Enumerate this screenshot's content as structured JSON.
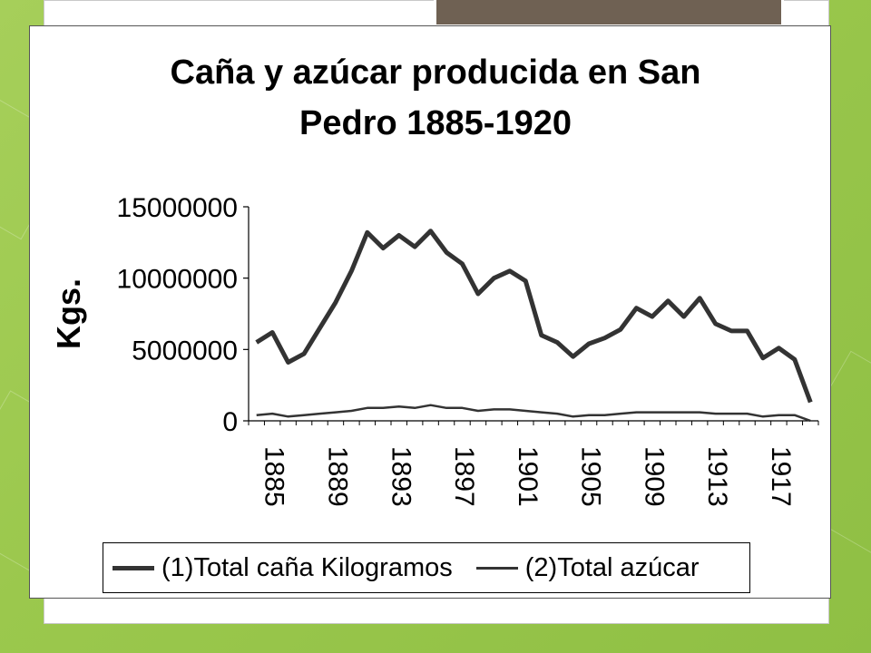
{
  "chart_data": {
    "type": "line",
    "title_lines": [
      "Caña y azúcar producida en San",
      "Pedro 1885-1920"
    ],
    "xlabel": "",
    "ylabel": "Kgs.",
    "ylim": [
      0,
      15000000
    ],
    "yticks": [
      0,
      5000000,
      10000000,
      15000000
    ],
    "xtick_labels": [
      "1885",
      "1889",
      "1893",
      "1897",
      "1901",
      "1905",
      "1909",
      "1913",
      "1917"
    ],
    "x": [
      1885,
      1886,
      1887,
      1888,
      1889,
      1890,
      1891,
      1892,
      1893,
      1894,
      1895,
      1896,
      1897,
      1898,
      1899,
      1900,
      1901,
      1902,
      1903,
      1904,
      1905,
      1906,
      1907,
      1908,
      1909,
      1910,
      1911,
      1912,
      1913,
      1914,
      1915,
      1916,
      1917,
      1918,
      1919,
      1920
    ],
    "series": [
      {
        "name": "(1)Total caña Kilogramos",
        "color": "#333333",
        "weight": "thick",
        "values": [
          5500000,
          6200000,
          4100000,
          4700000,
          6500000,
          8300000,
          10500000,
          13200000,
          12100000,
          13000000,
          12200000,
          13300000,
          11800000,
          11000000,
          8900000,
          10000000,
          10500000,
          9800000,
          6000000,
          5500000,
          4500000,
          5400000,
          5800000,
          6400000,
          7900000,
          7300000,
          8400000,
          7300000,
          8600000,
          6800000,
          6300000,
          6300000,
          4400000,
          5100000,
          4300000,
          1300000
        ]
      },
      {
        "name": "(2)Total azúcar",
        "color": "#333333",
        "weight": "thin",
        "values": [
          400000,
          500000,
          300000,
          400000,
          500000,
          600000,
          700000,
          900000,
          900000,
          1000000,
          900000,
          1100000,
          900000,
          900000,
          700000,
          800000,
          800000,
          700000,
          600000,
          500000,
          300000,
          400000,
          400000,
          500000,
          600000,
          600000,
          600000,
          600000,
          600000,
          500000,
          500000,
          500000,
          300000,
          400000,
          400000,
          0
        ]
      }
    ],
    "legend_position": "bottom"
  }
}
